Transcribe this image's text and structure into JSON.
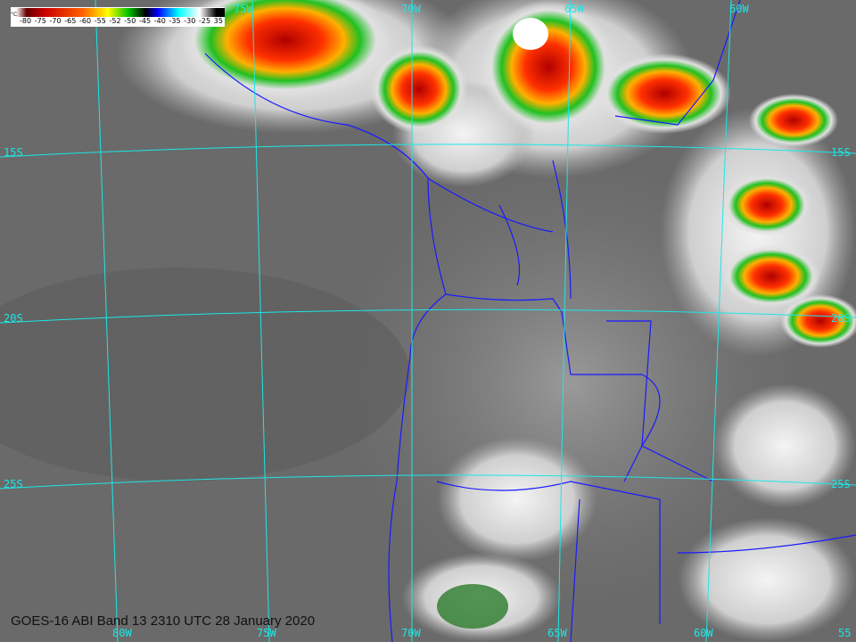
{
  "caption": "GOES-16 ABI Band 13 2310 UTC 28 January 2020",
  "colorbar": {
    "unit": "°C",
    "ticks": [
      "-80",
      "-75",
      "-70",
      "-65",
      "-60",
      "-55",
      "-52",
      "-50",
      "-45",
      "-40",
      "-35",
      "-30",
      "-25",
      "35"
    ]
  },
  "grid": {
    "top_lon": [
      "75W",
      "70W",
      "65W",
      "60W"
    ],
    "bottom_lon": [
      "80W",
      "75W",
      "70W",
      "65W",
      "60W",
      "55"
    ],
    "left_lat": [
      "15S",
      "20S",
      "25S"
    ],
    "right_lat": [
      "15S",
      "20S",
      "25S"
    ]
  },
  "colors": {
    "grid": "#1ee6e6",
    "borders": "#1a1aff",
    "background": "#6a6a6a"
  }
}
